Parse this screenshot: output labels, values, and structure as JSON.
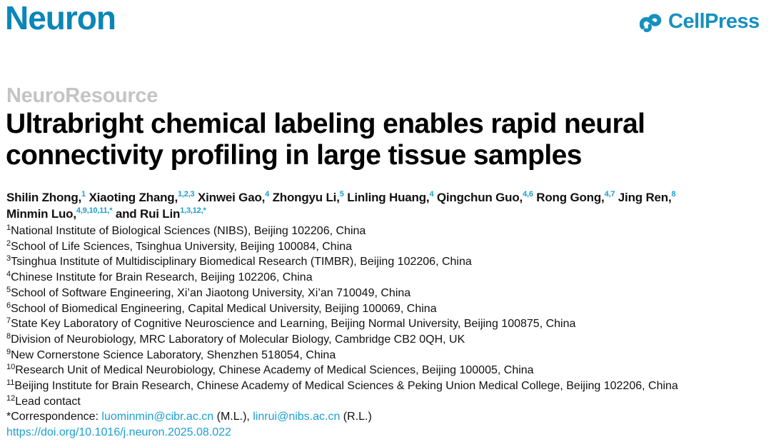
{
  "header": {
    "journal": "Neuron",
    "publisher": "CellPress",
    "brand_color": "#0a86b8"
  },
  "article": {
    "section": "NeuroResource",
    "title_line1": "Ultrabright chemical labeling enables rapid neural",
    "title_line2": "connectivity profiling in large tissue samples"
  },
  "authors": [
    {
      "name": "Shilin Zhong,",
      "sup": "1"
    },
    {
      "name": "Xiaoting Zhang,",
      "sup": "1,2,3"
    },
    {
      "name": "Xinwei Gao,",
      "sup": "4"
    },
    {
      "name": "Zhongyu Li,",
      "sup": "5"
    },
    {
      "name": "Linling Huang,",
      "sup": "4"
    },
    {
      "name": "Qingchun Guo,",
      "sup": "4,6"
    },
    {
      "name": "Rong Gong,",
      "sup": "4,7"
    },
    {
      "name": "Jing Ren,",
      "sup": "8"
    },
    {
      "name": "Minmin Luo,",
      "sup": "4,9,10,11,*"
    },
    {
      "name": "and Rui Lin",
      "sup": "1,3,12,*"
    }
  ],
  "affiliations": [
    {
      "n": "1",
      "text": "National Institute of Biological Sciences (NIBS), Beijing 102206, China"
    },
    {
      "n": "2",
      "text": "School of Life Sciences, Tsinghua University, Beijing 100084, China"
    },
    {
      "n": "3",
      "text": "Tsinghua Institute of Multidisciplinary Biomedical Research (TIMBR), Beijing 102206, China"
    },
    {
      "n": "4",
      "text": "Chinese Institute for Brain Research, Beijing 102206, China"
    },
    {
      "n": "5",
      "text": "School of Software Engineering, Xi’an Jiaotong University, Xi’an 710049, China"
    },
    {
      "n": "6",
      "text": "School of Biomedical Engineering, Capital Medical University, Beijing 100069, China"
    },
    {
      "n": "7",
      "text": "State Key Laboratory of Cognitive Neuroscience and Learning, Beijing Normal University, Beijing 100875, China"
    },
    {
      "n": "8",
      "text": "Division of Neurobiology, MRC Laboratory of Molecular Biology, Cambridge CB2 0QH, UK"
    },
    {
      "n": "9",
      "text": "New Cornerstone Science Laboratory, Shenzhen 518054, China"
    },
    {
      "n": "10",
      "text": "Research Unit of Medical Neurobiology, Chinese Academy of Medical Sciences, Beijing 100005, China"
    },
    {
      "n": "11",
      "text": "Beijing Institute for Brain Research, Chinese Academy of Medical Sciences & Peking Union Medical College, Beijing 102206, China"
    },
    {
      "n": "12",
      "text": "Lead contact"
    }
  ],
  "correspondence": {
    "label": "*Correspondence: ",
    "email1": "luominmin@cibr.ac.cn",
    "who1": " (M.L.), ",
    "email2": "linrui@nibs.ac.cn",
    "who2": " (R.L.)"
  },
  "doi": "https://doi.org/10.1016/j.neuron.2025.08.022"
}
